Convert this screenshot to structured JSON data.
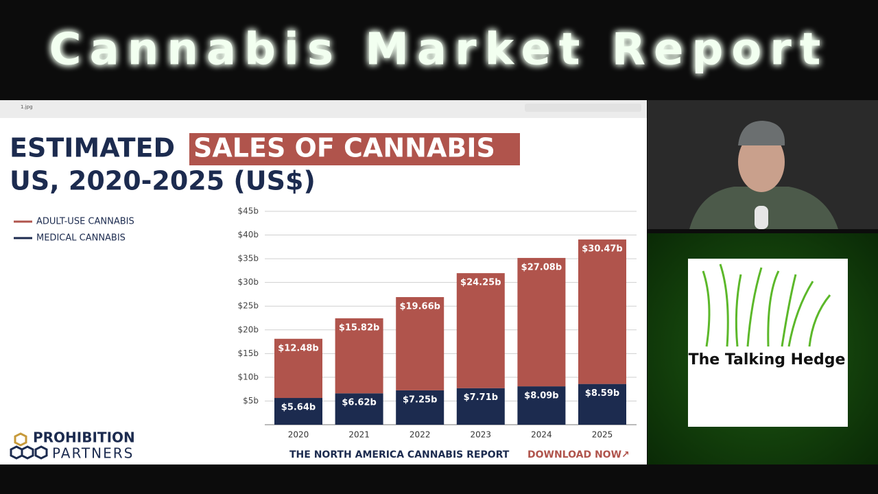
{
  "header": {
    "title": "Cannabis Market Report"
  },
  "window": {
    "filename": "1.jpg"
  },
  "slide": {
    "title_part1": "ESTIMATED",
    "title_highlight": "SALES OF CANNABIS",
    "title_line2": "US, 2020-2025 (US$)",
    "logo_line1": "PROHIBITION",
    "logo_line2": "PARTNERS",
    "footer_text": "THE NORTH AMERICA CANNABIS REPORT",
    "footer_link": "DOWNLOAD NOW↗"
  },
  "chart_data": {
    "type": "stacked_bar",
    "categories": [
      "2020",
      "2021",
      "2022",
      "2023",
      "2024",
      "2025"
    ],
    "series": [
      {
        "name": "ADULT-USE CANNABIS",
        "color": "#b0544c",
        "values": [
          12.48,
          15.82,
          19.66,
          24.25,
          27.08,
          30.47
        ],
        "value_labels": [
          "$12.48b",
          "$15.82b",
          "$19.66b",
          "$24.25b",
          "$27.08b",
          "$30.47b"
        ]
      },
      {
        "name": "MEDICAL CANNABIS",
        "color": "#1c2b4f",
        "values": [
          5.64,
          6.62,
          7.25,
          7.71,
          8.09,
          8.59
        ],
        "value_labels": [
          "$5.64b",
          "$6.62b",
          "$7.25b",
          "$7.71b",
          "$8.09b",
          "$8.59b"
        ]
      }
    ],
    "ylim": [
      0,
      45
    ],
    "yticks": [
      {
        "value": 5,
        "label": "$5b"
      },
      {
        "value": 10,
        "label": "$10b"
      },
      {
        "value": 15,
        "label": "$15b"
      },
      {
        "value": 20,
        "label": "$20b"
      },
      {
        "value": 25,
        "label": "$25b"
      },
      {
        "value": 30,
        "label": "$30b"
      },
      {
        "value": 35,
        "label": "$35b"
      },
      {
        "value": 40,
        "label": "$40b"
      },
      {
        "value": 45,
        "label": "$45b"
      }
    ],
    "grid": true
  },
  "sidebar": {
    "brand": "The Talking Hedge"
  }
}
